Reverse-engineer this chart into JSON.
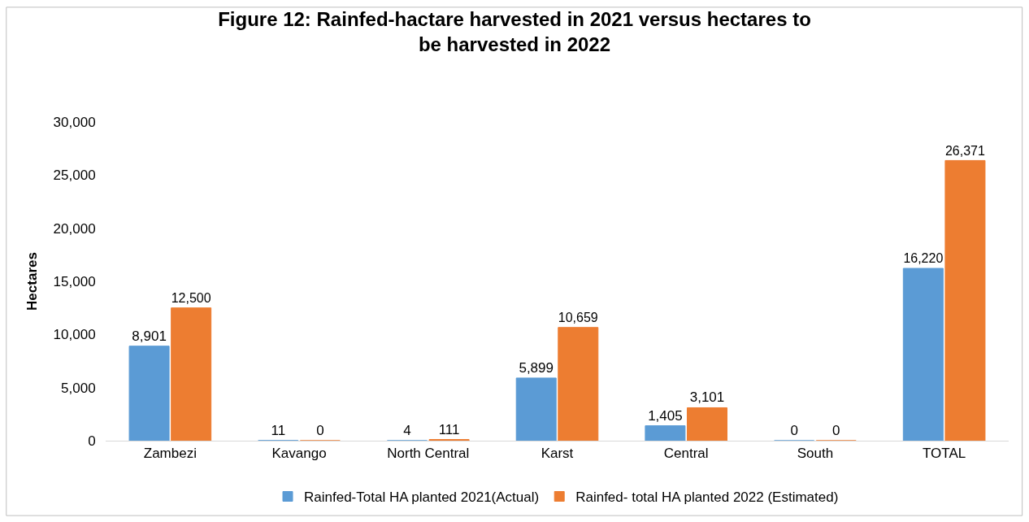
{
  "chart_data": {
    "type": "bar",
    "title": "Figure 12: Rainfed-hactare harvested in 2021 versus hectares to be harvested in 2022",
    "ylabel": "Hectares",
    "categories": [
      "Zambezi",
      "Kavango",
      "North Central",
      "Karst",
      "Central",
      "South",
      "TOTAL"
    ],
    "series": [
      {
        "name": "Rainfed-Total HA planted 2021(Actual)",
        "color": "#5b9bd5",
        "values": [
          8901,
          11,
          4,
          5899,
          1405,
          0,
          16220
        ],
        "value_labels": [
          "8,901",
          "11",
          "4",
          "5,899",
          "1,405",
          "0",
          "16,220"
        ]
      },
      {
        "name": "Rainfed- total HA planted 2022 (Estimated)",
        "color": "#ed7d31",
        "values": [
          12500,
          0,
          111,
          10659,
          3101,
          0,
          26371
        ],
        "value_labels": [
          "12,500",
          "0",
          "111",
          "10,659",
          "3,101",
          "0",
          "26,371"
        ]
      }
    ],
    "ylim": [
      0,
      30000
    ],
    "yticks": [
      {
        "value": 0,
        "label": "0"
      },
      {
        "value": 5000,
        "label": "5,000"
      },
      {
        "value": 10000,
        "label": "10,000"
      },
      {
        "value": 15000,
        "label": "15,000"
      },
      {
        "value": 20000,
        "label": "20,000"
      },
      {
        "value": 25000,
        "label": "25,000"
      },
      {
        "value": 30000,
        "label": "30,000"
      }
    ],
    "grid": false,
    "legend": "bottom"
  }
}
